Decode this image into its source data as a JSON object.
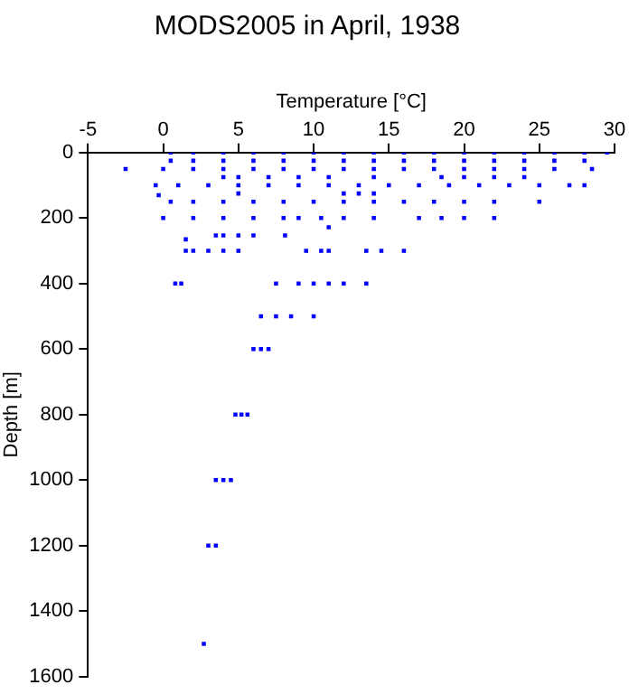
{
  "chart_data": {
    "type": "scatter",
    "title": "MODS2005 in April, 1938",
    "xlabel": "Temperature [°C]",
    "ylabel": "Depth [m]",
    "xlim": [
      -5,
      30
    ],
    "xticks": [
      -5,
      0,
      5,
      10,
      15,
      20,
      25,
      30
    ],
    "ylim": [
      1600,
      0
    ],
    "yticks": [
      0,
      200,
      400,
      600,
      800,
      1000,
      1200,
      1400,
      1600
    ],
    "grid": false,
    "legend": false,
    "marker": "square",
    "series": [
      {
        "color": "#0000ff",
        "x": [
          0.5,
          2,
          4,
          6,
          8,
          10,
          12,
          14,
          16,
          18,
          20,
          22,
          24,
          26,
          28,
          29.5,
          0.5,
          2,
          4,
          6,
          8,
          10,
          12,
          14,
          16,
          18,
          20,
          22,
          24,
          26,
          28,
          -2.5,
          0,
          2,
          4,
          6,
          8,
          10,
          12,
          14,
          16,
          18,
          20,
          22,
          24,
          26,
          28.5,
          4,
          5,
          7,
          9,
          11,
          14,
          18.5,
          20,
          22,
          24,
          -0.5,
          1,
          3,
          5,
          7,
          9,
          11,
          13,
          15,
          17,
          19,
          21,
          23,
          25,
          27,
          28,
          -0.3,
          5,
          12,
          13,
          14,
          0.5,
          2,
          4,
          6,
          8,
          10,
          12,
          14,
          16,
          18,
          20,
          22,
          25,
          0,
          2,
          4,
          6,
          8,
          9,
          10.5,
          12,
          14,
          17,
          18.5,
          20,
          22,
          11,
          3.5,
          4,
          5,
          6,
          8.1,
          1.5,
          1.5,
          2,
          3,
          4,
          5,
          9.5,
          10.5,
          11,
          13.5,
          14.5,
          16,
          0.8,
          1.2,
          7.5,
          9,
          10,
          11,
          12,
          13.5,
          6.5,
          7.5,
          8.5,
          10,
          6,
          6.5,
          7,
          4.8,
          5.2,
          5.6,
          3.5,
          4,
          4.5,
          3,
          3.5,
          2.7
        ],
        "values": [
          0,
          0,
          0,
          0,
          0,
          0,
          0,
          0,
          0,
          0,
          0,
          0,
          0,
          0,
          0,
          0,
          25,
          25,
          25,
          25,
          25,
          25,
          25,
          25,
          25,
          25,
          25,
          25,
          25,
          25,
          25,
          50,
          50,
          50,
          50,
          50,
          50,
          50,
          50,
          50,
          50,
          50,
          50,
          50,
          50,
          50,
          50,
          75,
          75,
          75,
          75,
          75,
          75,
          75,
          75,
          75,
          75,
          100,
          100,
          100,
          100,
          100,
          100,
          100,
          100,
          100,
          100,
          100,
          100,
          100,
          100,
          100,
          100,
          130,
          125,
          125,
          125,
          125,
          150,
          150,
          150,
          150,
          150,
          150,
          150,
          150,
          150,
          150,
          150,
          150,
          150,
          200,
          200,
          200,
          200,
          200,
          200,
          200,
          200,
          200,
          200,
          200,
          200,
          200,
          228,
          253,
          253,
          253,
          253,
          253,
          265,
          300,
          300,
          300,
          300,
          300,
          300,
          300,
          300,
          300,
          300,
          300,
          400,
          400,
          400,
          400,
          400,
          400,
          400,
          400,
          500,
          500,
          500,
          500,
          600,
          600,
          600,
          800,
          800,
          800,
          1000,
          1000,
          1000,
          1200,
          1200,
          1500
        ]
      }
    ]
  }
}
